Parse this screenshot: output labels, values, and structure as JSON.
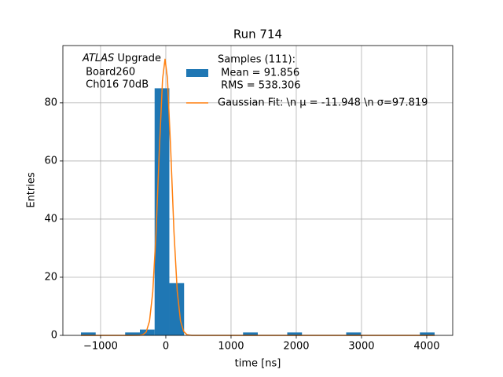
{
  "chart_data": {
    "type": "histogram",
    "title": "Run 714",
    "x_label": "time [ns]",
    "y_label": "Entries",
    "annotation": [
      "ATLAS",
      "Upgrade",
      " Board260",
      " Ch016 70dB"
    ],
    "xlim": [
      -1578,
      4398
    ],
    "ylim": [
      0,
      99.7
    ],
    "xticks": [
      {
        "value": -1000,
        "label": "−1000"
      },
      0,
      1000,
      2000,
      3000,
      4000
    ],
    "yticks": [
      0,
      20,
      40,
      60,
      80
    ],
    "grid": true,
    "series": [
      {
        "name": [
          "Samples (111):",
          " Mean = 91.856",
          " RMS = 538.306"
        ],
        "color": "#1f77b4",
        "bins": [
          -1301,
          -1075.1,
          -849.2,
          -623.3,
          -397.4,
          -171.5,
          54.4,
          280.3,
          506.2,
          732.1,
          958,
          1183.9,
          1409.8,
          1635.7,
          1861.6,
          2087.5,
          2313.4,
          2539.3,
          2765.2,
          2991.1,
          3217,
          3442.9,
          3668.8,
          3894.7,
          4120.6
        ],
        "values": [
          1,
          0,
          0,
          1,
          2,
          85,
          18,
          0,
          0,
          0,
          0,
          1,
          0,
          0,
          1,
          0,
          0,
          0,
          1,
          0,
          0,
          0,
          0,
          1
        ]
      },
      {
        "name": "Gaussian Fit: \\n μ = -11.948 \\n σ=97.819",
        "color": "#ff7f0e",
        "type": "line",
        "x": [
          -1301,
          -600,
          -400,
          -350,
          -300,
          -250,
          -200,
          -150,
          -100,
          -50,
          -12,
          25,
          75,
          125,
          175,
          225,
          275,
          325,
          400,
          4120.6
        ],
        "values": [
          0,
          0,
          0.04,
          0.24,
          1.2,
          4.9,
          14.9,
          35.1,
          63.4,
          88.1,
          95,
          88.5,
          63.9,
          35.6,
          15.2,
          5.0,
          1.3,
          0.25,
          0,
          0
        ]
      }
    ]
  }
}
